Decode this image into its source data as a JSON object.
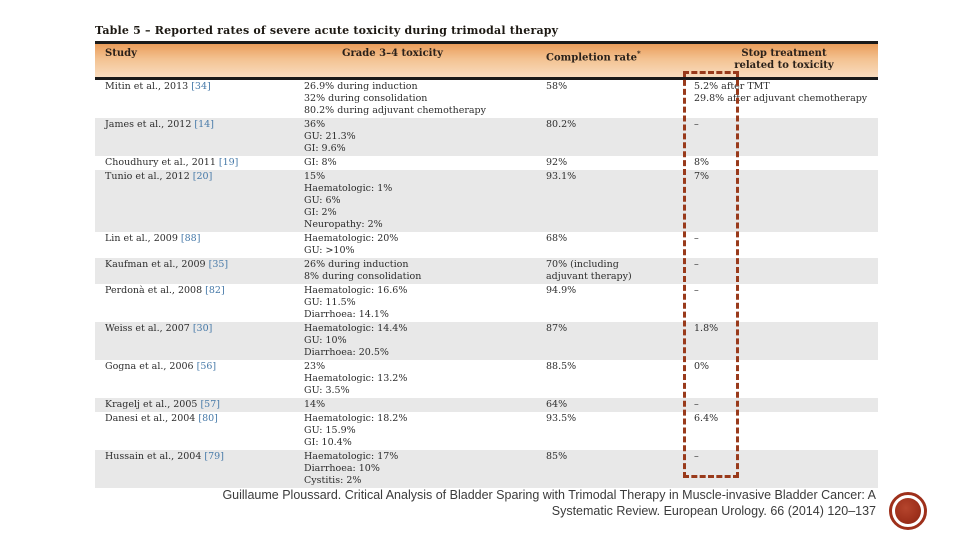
{
  "table": {
    "title": "Table 5 – Reported rates of severe acute toxicity during trimodal therapy",
    "header": {
      "study": "Study",
      "toxicity": "Grade 3–4 toxicity",
      "completion": "Completion rate",
      "completion_sup": "*",
      "stop_line1": "Stop treatment",
      "stop_line2": "related to toxicity"
    },
    "rows": [
      {
        "study": "Mitin et al., 2013",
        "ref": "[34]",
        "toxicity": [
          "26.9% during induction",
          "32% during consolidation",
          "80.2% during adjuvant chemotherapy"
        ],
        "completion": [
          "58%"
        ],
        "stop": [
          "5.2% after TMT",
          "29.8% after adjuvant chemotherapy"
        ],
        "shaded": false
      },
      {
        "study": "James et al., 2012",
        "ref": "[14]",
        "toxicity": [
          "36%",
          "GU: 21.3%",
          "GI: 9.6%"
        ],
        "completion": [
          "80.2%"
        ],
        "stop": [
          "–"
        ],
        "shaded": true
      },
      {
        "study": "Choudhury et al., 2011",
        "ref": "[19]",
        "toxicity": [
          "GI: 8%"
        ],
        "completion": [
          "92%"
        ],
        "stop": [
          "8%"
        ],
        "shaded": false
      },
      {
        "study": "Tunio et al., 2012",
        "ref": "[20]",
        "toxicity": [
          "15%",
          "Haematologic: 1%",
          "GU: 6%",
          "GI: 2%",
          "Neuropathy: 2%"
        ],
        "completion": [
          "93.1%"
        ],
        "stop": [
          "7%"
        ],
        "shaded": true
      },
      {
        "study": "Lin et al., 2009",
        "ref": "[88]",
        "toxicity": [
          "Haematologic: 20%",
          "GU: >10%"
        ],
        "completion": [
          "68%"
        ],
        "stop": [
          "–"
        ],
        "shaded": false
      },
      {
        "study": "Kaufman et al., 2009",
        "ref": "[35]",
        "toxicity": [
          "26% during induction",
          "8% during consolidation"
        ],
        "completion": [
          "70% (including",
          "adjuvant therapy)"
        ],
        "stop": [
          "–"
        ],
        "shaded": true
      },
      {
        "study": "Perdonà et al., 2008",
        "ref": "[82]",
        "toxicity": [
          "Haematologic: 16.6%",
          "GU: 11.5%",
          "Diarrhoea: 14.1%"
        ],
        "completion": [
          "94.9%"
        ],
        "stop": [
          "–"
        ],
        "shaded": false
      },
      {
        "study": "Weiss et al., 2007",
        "ref": "[30]",
        "toxicity": [
          "Haematologic: 14.4%",
          "GU: 10%",
          "Diarrhoea: 20.5%"
        ],
        "completion": [
          "87%"
        ],
        "stop": [
          "1.8%"
        ],
        "shaded": true
      },
      {
        "study": "Gogna et al., 2006",
        "ref": "[56]",
        "toxicity": [
          "23%",
          "Haematologic: 13.2%",
          "GU: 3.5%"
        ],
        "completion": [
          "88.5%"
        ],
        "stop": [
          "0%"
        ],
        "shaded": false
      },
      {
        "study": "Kragelj et al., 2005",
        "ref": "[57]",
        "toxicity": [
          "14%"
        ],
        "completion": [
          "64%"
        ],
        "stop": [
          "–"
        ],
        "shaded": true
      },
      {
        "study": "Danesi et al., 2004",
        "ref": "[80]",
        "toxicity": [
          "Haematologic: 18.2%",
          "GU: 15.9%",
          "GI: 10.4%"
        ],
        "completion": [
          "93.5%"
        ],
        "stop": [
          "6.4%"
        ],
        "shaded": false
      },
      {
        "study": "Hussain et al., 2004",
        "ref": "[79]",
        "toxicity": [
          "Haematologic: 17%",
          "Diarrhoea: 10%",
          "Cystitis: 2%"
        ],
        "completion": [
          "85%"
        ],
        "stop": [
          "–"
        ],
        "shaded": true
      }
    ]
  },
  "caption": {
    "line1": "Guillaume Ploussard. Critical Analysis of Bladder Sparing with Trimodal Therapy in Muscle-invasive Bladder Cancer: A",
    "line2": "Systematic Review. European Urology. 66 (2014) 120–137"
  },
  "colors": {
    "header_gradient_top": "#ea9d5a",
    "header_gradient_bottom": "#f9dcbf",
    "row_shade": "#e8e8e8",
    "reference_blue": "#4679a8",
    "rule_black": "#1a1a1a",
    "highlight_dashed_red": "#993a1b",
    "stamp_red": "#9e301b"
  }
}
